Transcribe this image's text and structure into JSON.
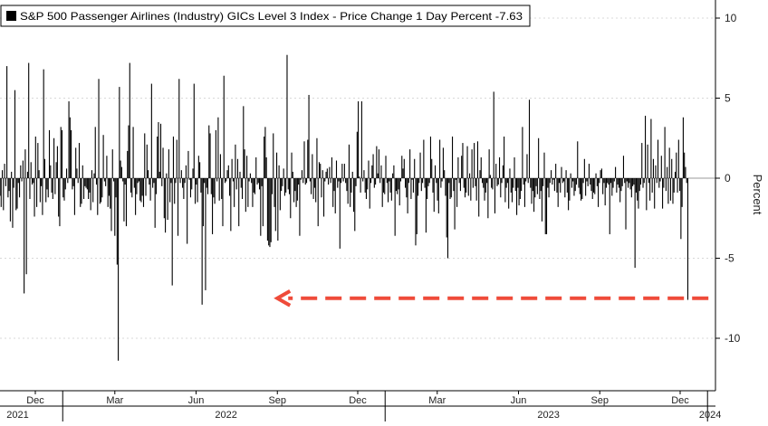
{
  "chart_data": {
    "type": "bar",
    "legend": {
      "text": "S&P 500 Passenger Airlines (Industry) GICs Level 3 Index - Price Change 1 Day Percent -7.63",
      "placement": "top-left"
    },
    "ylabel": "Percent",
    "ylim": [
      -12.5,
      11
    ],
    "yticks": [
      10,
      5,
      0,
      -5,
      -10
    ],
    "xlim": [
      "2021-10-22",
      "2024-01-10"
    ],
    "month_ticks": [
      {
        "label": "Dec",
        "date": "2021-12-01"
      },
      {
        "label": "Mar",
        "date": "2022-03-01"
      },
      {
        "label": "Jun",
        "date": "2022-06-01"
      },
      {
        "label": "Sep",
        "date": "2022-09-01"
      },
      {
        "label": "Dec",
        "date": "2022-12-01"
      },
      {
        "label": "Mar",
        "date": "2023-03-01"
      },
      {
        "label": "Jun",
        "date": "2023-06-01"
      },
      {
        "label": "Sep",
        "date": "2023-09-01"
      },
      {
        "label": "Dec",
        "date": "2023-12-01"
      }
    ],
    "year_labels": [
      {
        "label": "2021",
        "date": "2021-11-11"
      },
      {
        "label": "2022",
        "date": "2022-07-05"
      },
      {
        "label": "2023",
        "date": "2023-07-05"
      },
      {
        "label": "2024",
        "date": "2024-01-04"
      }
    ],
    "year_dividers": [
      "2022-01-01",
      "2023-01-01",
      "2024-01-01"
    ],
    "bar_color": "#000000",
    "annotation": {
      "type": "dashed-arrow",
      "color": "#ef4b3a",
      "value": -7.5,
      "from": "2024-01-02",
      "to": "2022-09-01"
    },
    "series": [
      {
        "start": "2021-10-22",
        "step_days": 1.3,
        "values": [
          -1.1,
          -1.8,
          0.5,
          -2,
          0.9,
          -0.5,
          7,
          -1.2,
          -0.8,
          -2.7,
          0.4,
          -3.1,
          -0.6,
          5.5,
          -2,
          -1.9,
          -0.3,
          -1.2,
          0.8,
          -0.2,
          1.1,
          -7.2,
          1.8,
          -6,
          0.4,
          7.2,
          -1.3,
          1,
          -0.4,
          -0.3,
          -2.4,
          2.6,
          -1.8,
          2.2,
          0.5,
          -1.5,
          -0.5,
          -2.3,
          6.8,
          1.2,
          -1.5,
          -0.7,
          -1.2,
          3,
          0.8,
          -0.9,
          -1.3,
          2.5,
          -1,
          1,
          2,
          -2.4,
          -3,
          3.2,
          3,
          -1.2,
          -1.4,
          -0.7,
          0.6,
          -0.3,
          4.8,
          3.8,
          3,
          -0.7,
          -0.5,
          -2.3,
          1.9,
          0.6,
          -0.3,
          2.2,
          -1.8,
          -1.6,
          0.8,
          -1.3,
          -0.5,
          -0.6,
          -0.7,
          -1.3,
          -0.9,
          -2,
          0.5,
          -1.5,
          0.3,
          3.2,
          -0.4,
          -2.3,
          6.2,
          -1.6,
          -1.5,
          -1.2,
          2.7,
          -0.2,
          -0.5,
          1.4,
          -1.8,
          -1.1,
          -1.9,
          -3.3,
          1.8,
          -0.2,
          -3.6,
          -1.2,
          -5.4,
          -11.4,
          5.7,
          1.1,
          0.7,
          -0.2,
          -2.7,
          -0.4,
          -3,
          1.7,
          3.3,
          7.2,
          -0.9,
          -1.2,
          3.2,
          -0.6,
          -2.3,
          -1,
          -0.3,
          -0.2,
          -1.4,
          -1.5,
          -1.1,
          -1.8,
          2.8,
          -1.1,
          2.1,
          0.5,
          -0.4,
          -1.4,
          5.9,
          -0.6,
          -0.3,
          -3.1,
          -1,
          2.6,
          3.5,
          0.4,
          3.4,
          -0.5,
          1.9,
          -2.5,
          -3.4,
          0.3,
          -2.6,
          1.8,
          -1.5,
          -0.3,
          -6.7,
          2.6,
          -1.6,
          -0.3,
          2.4,
          -3.6,
          6.2,
          -0.3,
          0.5,
          -0.6,
          -1.3,
          -0.3,
          0.8,
          -4.1,
          1.7,
          -0.1,
          -1.2,
          -0.7,
          0.6,
          5.9,
          -1.6,
          -0.4,
          -1.5,
          1.4,
          1,
          -0.9,
          -7.9,
          -3,
          -0.3,
          -7,
          -0.6,
          -1,
          3.3,
          2.8,
          -1,
          -3.5,
          -1.2,
          -1.6,
          3,
          -0.2,
          3.8,
          -1.4,
          1.5,
          -1.3,
          -3,
          6.4,
          -0.3,
          -0.2,
          0.5,
          0.8,
          -1.1,
          -3.3,
          1.2,
          -0.2,
          -1.8,
          2.1,
          -0.7,
          1.2,
          -3,
          0.4,
          -0.6,
          -1.3,
          4.5,
          1.8,
          -2.1,
          1.4,
          -1.8,
          -0.2,
          0.3,
          -0.3,
          -1.8,
          -0.9,
          -1,
          1.3,
          -0.4,
          -0.3,
          -0.7,
          -3.6,
          -0.5,
          -3,
          2.6,
          3.2,
          1.3,
          -3.9,
          -4.2,
          -4.3,
          -4,
          -1,
          2.8,
          -1.8,
          -3.3,
          1.6,
          -3.9,
          0.8,
          -2,
          -0.8,
          -0.5,
          0.6,
          -1.1,
          -0.9,
          7.7,
          -0.7,
          -1,
          -2.5,
          1.6,
          0.4,
          -1.5,
          -0.8,
          -1.8,
          -1.4,
          -0.4,
          -3.6,
          -0.1,
          0.5,
          -0.3,
          2.3,
          -0.4,
          -0.3,
          2.4,
          5.2,
          -0.2,
          -1,
          1.5,
          -1.3,
          -0.6,
          -1.5,
          2.5,
          -3,
          1,
          0.9,
          -1.2,
          0.5,
          -2.4,
          -0.2,
          0.4,
          0.6,
          -0.4,
          0.7,
          -0.3,
          1.3,
          -1.8,
          -0.8,
          -2.2,
          1.1,
          -0.6,
          -0.2,
          -4.4,
          -0.3,
          0.9,
          -0.2,
          0.9,
          -0.3,
          -0.8,
          -1.6,
          2.1,
          -1.8,
          -0.9,
          0.4,
          -2.1,
          -3.3,
          -0.5,
          2.9,
          4.8,
          0.1,
          -0.9,
          4.8,
          -0.2,
          0.5,
          -0.9,
          -1.3,
          -0.7,
          1.1,
          -1.9,
          -0.3,
          0.8,
          1.5,
          -0.6,
          -0.4,
          2,
          0.3,
          1.8,
          -0.3,
          0.8,
          -1.8,
          -0.9,
          -1,
          1.4,
          -0.3,
          -1.5,
          -0.2,
          -0.9,
          -1.4,
          0.3,
          0.8,
          -3.6,
          -0.8,
          -1,
          -0.7,
          -1.7,
          -0.2,
          1.4,
          0.6,
          1.2,
          -0.6,
          -1.2,
          -2.2,
          -0.3,
          1.8,
          -1.3,
          -0.1,
          -0.9,
          1.2,
          -4.2,
          -3.5,
          -1.1,
          -0.3,
          1.6,
          -0.8,
          -0.3,
          2.4,
          -0.6,
          -3.4,
          -1.3,
          -0.5,
          -0.3,
          2.6,
          1.2,
          -0.9,
          -2.1,
          0.8,
          -0.3,
          -1.4,
          -2.2,
          2.4,
          -0.6,
          -0.2,
          1.9,
          0.5,
          -1.1,
          -3.7,
          -5,
          -0.3,
          -1.3,
          -1.2,
          2.6,
          -0.8,
          -3.2,
          -0.1,
          -1.8,
          1.3,
          -0.3,
          -0.8,
          1.4,
          2.2,
          -0.6,
          -1.2,
          -0.9,
          2,
          -1.1,
          0.3,
          -1.4,
          1.8,
          -0.6,
          2.2,
          -0.5,
          -1.4,
          2.3,
          -2.4,
          0.5,
          1.3,
          -0.3,
          -0.6,
          -1.4,
          -0.9,
          -0.3,
          -2.5,
          1.8,
          0.2,
          -0.6,
          -0.7,
          5.4,
          -2.2,
          0.9,
          -0.5,
          -0.4,
          1.3,
          -1.2,
          -0.3,
          0.8,
          2.6,
          -1.5,
          -0.6,
          -0.3,
          -1.9,
          0.6,
          -0.9,
          -1.5,
          -0.6,
          1.3,
          -0.8,
          -2.3,
          -0.6,
          -1.7,
          -1.3,
          -0.8,
          3.2,
          -0.4,
          -1.8,
          -0.2,
          1.5,
          -0.3,
          4.9,
          -0.6,
          -1.6,
          -0.8,
          -2.1,
          -1.2,
          -0.5,
          -1,
          2.5,
          -1.3,
          -0.8,
          -2.7,
          -0.5,
          1.6,
          -3.5,
          -3.5,
          -0.6,
          -1.2,
          -0.3,
          0.5,
          -0.4,
          -0.1,
          -0.8,
          0.9,
          -0.9,
          -1.8,
          -0.3,
          -0.9,
          0.7,
          -0.3,
          -0.2,
          -1.2,
          0.5,
          -0.9,
          -2,
          -1.4,
          0.3,
          -0.6,
          -0.2,
          -1.1,
          -0.8,
          -0.4,
          2.3,
          -0.6,
          -1,
          -1.4,
          -1.3,
          -0.3,
          1.2,
          -1.1,
          -0.2,
          -0.5,
          0.9,
          -0.4,
          -0.8,
          -1.3,
          -0.9,
          -1,
          0.3,
          -0.5,
          -1.8,
          -0.3,
          0.5,
          0.6,
          -1,
          -0.3,
          -1.7,
          -0.6,
          -0.3,
          -0.4,
          -3.5,
          -0.3,
          -1.1,
          -0.6,
          -0.2,
          0.7,
          -0.9,
          -0.4,
          -0.6,
          -1.5,
          -0.8,
          -0.5,
          1.4,
          -0.3,
          -3.2,
          -0.2,
          -0.6,
          -0.3,
          -0.7,
          -1.2,
          -0.5,
          -0.4,
          -5.6,
          -0.9,
          -1.4,
          -1.9,
          -0.8,
          -0.4,
          2.2,
          -0.6,
          -0.3,
          3.9,
          -2,
          2.1,
          -0.3,
          -1.4,
          3.7,
          -0.9,
          1.2,
          -1.9,
          0.8,
          -0.3,
          2.4,
          -0.6,
          -0.2,
          1.4,
          -1.9,
          -0.6,
          3.2,
          -0.8,
          0.7,
          -1.6,
          1.9,
          -1.4,
          1.2,
          -1.6,
          -0.9,
          0.4,
          1.6,
          -0.9,
          2.4,
          -0.8,
          -3.8,
          -1.8,
          3.8,
          1.6,
          0.7,
          -0.3,
          -7.6
        ]
      }
    ]
  }
}
